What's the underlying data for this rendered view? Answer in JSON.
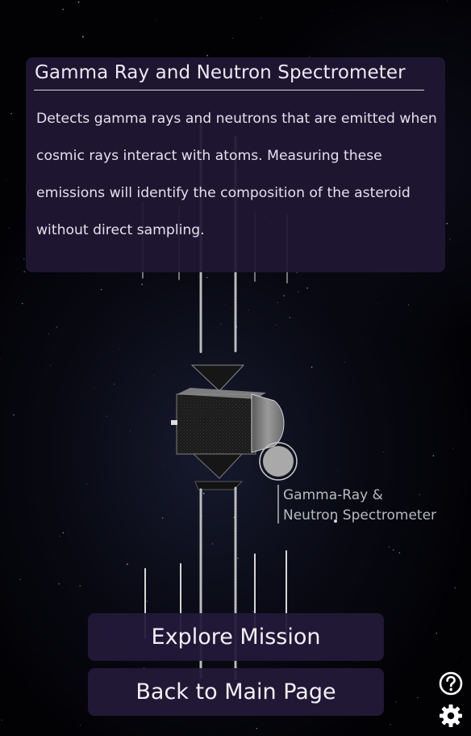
{
  "info_card": {
    "title": "Gamma Ray and Neutron Spectrometer",
    "description": "Detects gamma rays and neutrons that are emitted when cosmic rays interact with atoms. Measuring these emissions will identify the composition of the asteroid without direct sampling."
  },
  "instrument_marker": {
    "label_line1": "Gamma-Ray &",
    "label_line2": "Neutron Spectrometer"
  },
  "buttons": {
    "explore": "Explore Mission",
    "back": "Back to Main Page"
  },
  "icons": {
    "help": "help-icon",
    "settings": "gear-icon"
  }
}
